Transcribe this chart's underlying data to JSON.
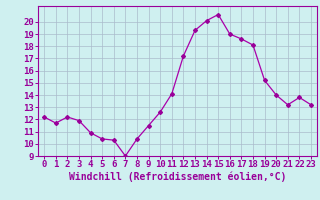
{
  "x": [
    0,
    1,
    2,
    3,
    4,
    5,
    6,
    7,
    8,
    9,
    10,
    11,
    12,
    13,
    14,
    15,
    16,
    17,
    18,
    19,
    20,
    21,
    22,
    23
  ],
  "y": [
    12.2,
    11.7,
    12.2,
    11.9,
    10.9,
    10.4,
    10.3,
    9.0,
    10.4,
    11.5,
    12.6,
    14.1,
    17.2,
    19.3,
    20.1,
    20.6,
    19.0,
    18.6,
    18.1,
    15.2,
    14.0,
    13.2,
    13.8,
    13.2
  ],
  "line_color": "#aa00aa",
  "marker": "D",
  "marker_size": 2.0,
  "xlabel": "Windchill (Refroidissement éolien,°C)",
  "ylim": [
    9,
    21
  ],
  "xlim_min": -0.5,
  "xlim_max": 23.5,
  "yticks": [
    9,
    10,
    11,
    12,
    13,
    14,
    15,
    16,
    17,
    18,
    19,
    20
  ],
  "xticks": [
    0,
    1,
    2,
    3,
    4,
    5,
    6,
    7,
    8,
    9,
    10,
    11,
    12,
    13,
    14,
    15,
    16,
    17,
    18,
    19,
    20,
    21,
    22,
    23
  ],
  "bg_color": "#cff0f0",
  "grid_color": "#aabbcc",
  "line_purple": "#990099",
  "font_size_tick": 6.5,
  "font_size_label": 7.0
}
